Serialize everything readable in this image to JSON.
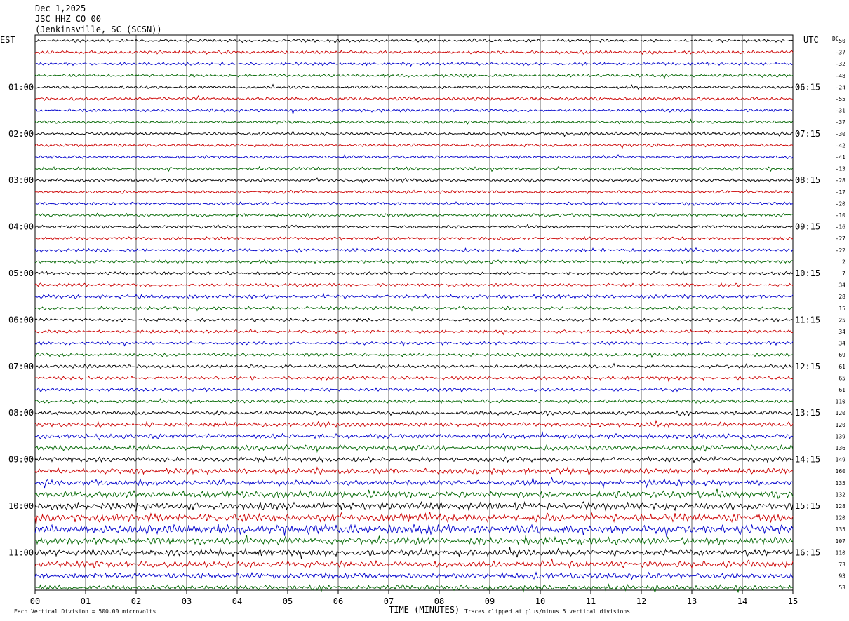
{
  "header": {
    "date": "Dec 1,2025",
    "station": "JSC HHZ CO 00",
    "location": "(Jenkinsville, SC (SCSN))"
  },
  "left_axis_label": "EST",
  "right_axis_label": "UTC",
  "dc_label": "DC",
  "footer": {
    "xlabel": "TIME (MINUTES)",
    "scale_note": "Each Vertical Division =  500.00 microvolts",
    "clip_note": "Traces clipped at plus/minus 5 vertical divisions"
  },
  "chart_data": {
    "type": "line",
    "title": "JSC HHZ CO 00",
    "xlabel": "TIME (MINUTES)",
    "xlim": [
      0,
      15
    ],
    "x_ticks": [
      "00",
      "01",
      "02",
      "03",
      "04",
      "05",
      "06",
      "07",
      "08",
      "09",
      "10",
      "11",
      "12",
      "13",
      "14",
      "15"
    ],
    "trace_count": 48,
    "trace_colors": [
      "#000000",
      "#cc0000",
      "#0000cc",
      "#006600"
    ],
    "left_hour_labels": [
      {
        "trace": 4,
        "label": "01:00"
      },
      {
        "trace": 8,
        "label": "02:00"
      },
      {
        "trace": 12,
        "label": "03:00"
      },
      {
        "trace": 16,
        "label": "04:00"
      },
      {
        "trace": 20,
        "label": "05:00"
      },
      {
        "trace": 24,
        "label": "06:00"
      },
      {
        "trace": 28,
        "label": "07:00"
      },
      {
        "trace": 32,
        "label": "08:00"
      },
      {
        "trace": 36,
        "label": "09:00"
      },
      {
        "trace": 40,
        "label": "10:00"
      },
      {
        "trace": 44,
        "label": "11:00"
      }
    ],
    "right_hour_labels": [
      {
        "trace": 4,
        "label": "06:15"
      },
      {
        "trace": 8,
        "label": "07:15"
      },
      {
        "trace": 12,
        "label": "08:15"
      },
      {
        "trace": 16,
        "label": "09:15"
      },
      {
        "trace": 20,
        "label": "10:15"
      },
      {
        "trace": 24,
        "label": "11:15"
      },
      {
        "trace": 28,
        "label": "12:15"
      },
      {
        "trace": 32,
        "label": "13:15"
      },
      {
        "trace": 36,
        "label": "14:15"
      },
      {
        "trace": 40,
        "label": "15:15"
      },
      {
        "trace": 44,
        "label": "16:15"
      }
    ],
    "dc_offsets": [
      "50",
      "-37",
      "-32",
      "-48",
      "-24",
      "-55",
      "-31",
      "-37",
      "-30",
      "-42",
      "-41",
      "-13",
      "-28",
      "-17",
      "-20",
      "-10",
      "-16",
      "-27",
      "-22",
      "2",
      "7",
      "34",
      "28",
      "15",
      "25",
      "34",
      "34",
      "69",
      "61",
      "65",
      "61",
      "110",
      "120",
      "120",
      "139",
      "136",
      "149",
      "160",
      "135",
      "132",
      "128",
      "120",
      "135",
      "107",
      "110",
      "73",
      "93",
      "53"
    ],
    "trace_activity": [
      1,
      1,
      1,
      1,
      1,
      1,
      1,
      1,
      1,
      1,
      1,
      1,
      1,
      1,
      1,
      1,
      1,
      1,
      1,
      1,
      1,
      1,
      1.2,
      1,
      1,
      1,
      1,
      1.1,
      1.1,
      1.1,
      1.1,
      1.2,
      1.3,
      1.4,
      1.5,
      1.6,
      1.6,
      1.8,
      1.8,
      2.2,
      2.4,
      2.6,
      2.8,
      2.4,
      2.2,
      2.0,
      1.8,
      1.6
    ]
  }
}
